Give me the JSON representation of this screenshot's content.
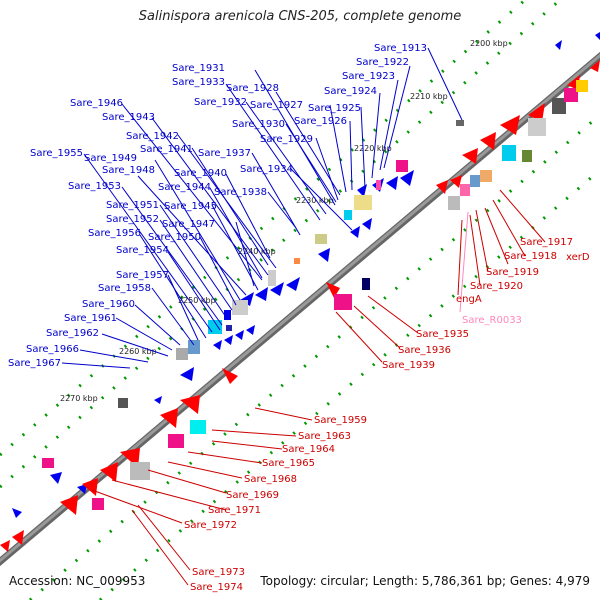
{
  "title": "Salinispora arenicola CNS-205, complete genome",
  "footer": {
    "accession": "Accession: NC_009953",
    "summary": "Topology: circular; Length: 5,786,361 bp; Genes: 4,979"
  },
  "colors": {
    "backbone": "#8a8a8a",
    "forward_strand": "#ff0000",
    "reverse_strand": "#0000ee",
    "forward_label": "#cc0000",
    "reverse_label": "#0000cc",
    "rna_label": "#ff88bb",
    "tick_dots": "#009900"
  },
  "scale_ticks": [
    "2200 kbp",
    "2210 kbp",
    "2220 kbp",
    "2230 kbp",
    "2240 kbp",
    "2250 kbp",
    "2260 kbp",
    "2270 kbp"
  ],
  "reverse_genes": [
    "Sare_1913",
    "Sare_1922",
    "Sare_1923",
    "Sare_1924",
    "Sare_1925",
    "Sare_1926",
    "Sare_1927",
    "Sare_1928",
    "Sare_1929",
    "Sare_1930",
    "Sare_1931",
    "Sare_1932",
    "Sare_1933",
    "Sare_1934",
    "Sare_1937",
    "Sare_1938",
    "Sare_1940",
    "Sare_1941",
    "Sare_1942",
    "Sare_1943",
    "Sare_1944",
    "Sare_1945",
    "Sare_1946",
    "Sare_1947",
    "Sare_1948",
    "Sare_1949",
    "Sare_1950",
    "Sare_1951",
    "Sare_1952",
    "Sare_1953",
    "Sare_1954",
    "Sare_1955",
    "Sare_1956",
    "Sare_1957",
    "Sare_1958",
    "Sare_1960",
    "Sare_1961",
    "Sare_1962",
    "Sare_1966",
    "Sare_1967"
  ],
  "forward_genes": [
    "Sare_1917",
    "xerD",
    "Sare_1918",
    "Sare_1919",
    "Sare_1920",
    "engA",
    "Sare_1935",
    "Sare_1936",
    "Sare_1939",
    "Sare_1959",
    "Sare_1963",
    "Sare_1964",
    "Sare_1965",
    "Sare_1968",
    "Sare_1969",
    "Sare_1971",
    "Sare_1972",
    "Sare_1973",
    "Sare_1974"
  ],
  "rna_genes": [
    "Sare_R0033"
  ]
}
